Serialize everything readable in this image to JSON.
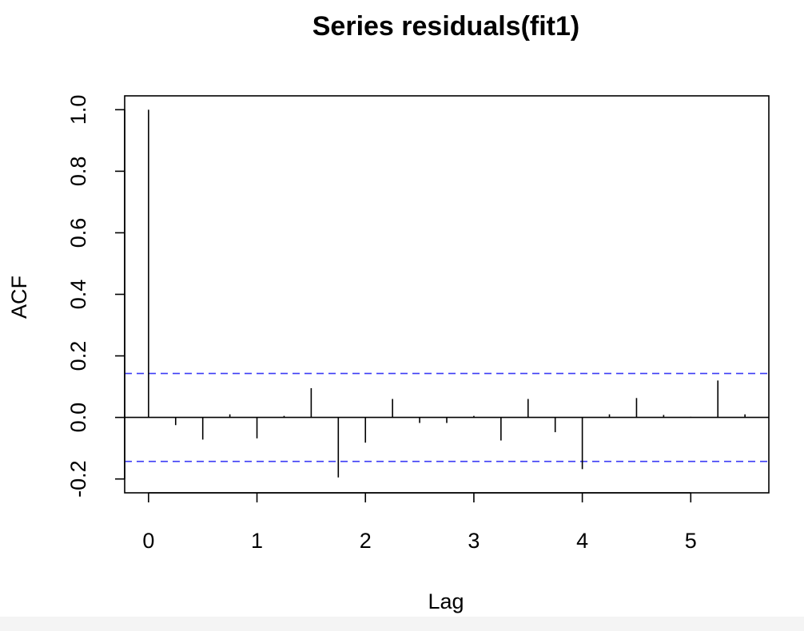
{
  "chart_data": {
    "type": "bar",
    "title": "Series  residuals(fit1)",
    "xlabel": "Lag",
    "ylabel": "ACF",
    "xlim": [
      -0.22,
      5.72
    ],
    "ylim": [
      -0.245,
      1.045
    ],
    "xticks": [
      "0",
      "1",
      "2",
      "3",
      "4",
      "5"
    ],
    "yticks": [
      "-0.2",
      "0.0",
      "0.2",
      "0.4",
      "0.6",
      "0.8",
      "1.0"
    ],
    "lags": [
      0,
      0.25,
      0.5,
      0.75,
      1.0,
      1.25,
      1.5,
      1.75,
      2.0,
      2.25,
      2.5,
      2.75,
      3.0,
      3.25,
      3.5,
      3.75,
      4.0,
      4.25,
      4.5,
      4.75,
      5.0,
      5.25,
      5.5
    ],
    "values": [
      1.0,
      -0.025,
      -0.072,
      0.01,
      -0.068,
      0.005,
      0.095,
      -0.195,
      -0.082,
      0.06,
      -0.018,
      -0.018,
      0.005,
      -0.075,
      0.06,
      -0.048,
      -0.168,
      0.01,
      0.063,
      0.008,
      0.002,
      0.12,
      0.01
    ],
    "confidence_band": [
      0.143,
      -0.143
    ],
    "colors": {
      "spikes": "#000000",
      "confidence": "#3b3bf5",
      "axes": "#000000"
    },
    "grid": false
  }
}
